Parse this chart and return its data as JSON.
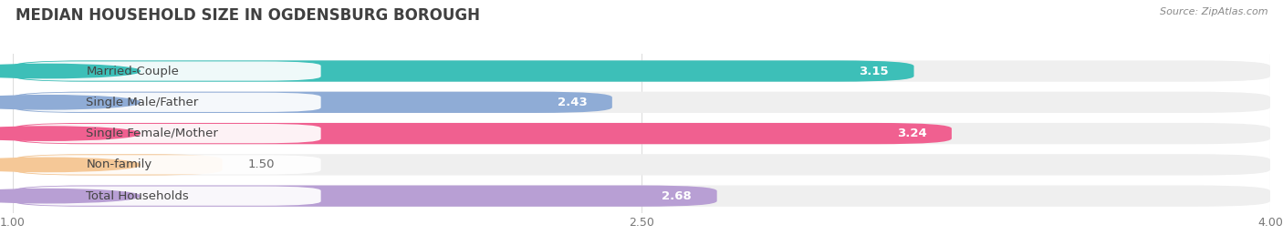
{
  "title": "MEDIAN HOUSEHOLD SIZE IN OGDENSBURG BOROUGH",
  "source": "Source: ZipAtlas.com",
  "categories": [
    "Married-Couple",
    "Single Male/Father",
    "Single Female/Mother",
    "Non-family",
    "Total Households"
  ],
  "values": [
    3.15,
    2.43,
    3.24,
    1.5,
    2.68
  ],
  "bar_colors": [
    "#3dbfb8",
    "#8facd6",
    "#f06090",
    "#f5c897",
    "#b89fd4"
  ],
  "bar_bg_colors": [
    "#efefef",
    "#efefef",
    "#efefef",
    "#efefef",
    "#efefef"
  ],
  "label_pill_colors": [
    "#3dbfb8",
    "#8facd6",
    "#f06090",
    "#f5c897",
    "#b89fd4"
  ],
  "xlim": [
    1.0,
    4.0
  ],
  "xticks": [
    1.0,
    2.5,
    4.0
  ],
  "title_fontsize": 12,
  "label_fontsize": 9.5,
  "value_fontsize": 9.5,
  "background_color": "#ffffff",
  "bar_area_bg": "#f9f9f9"
}
